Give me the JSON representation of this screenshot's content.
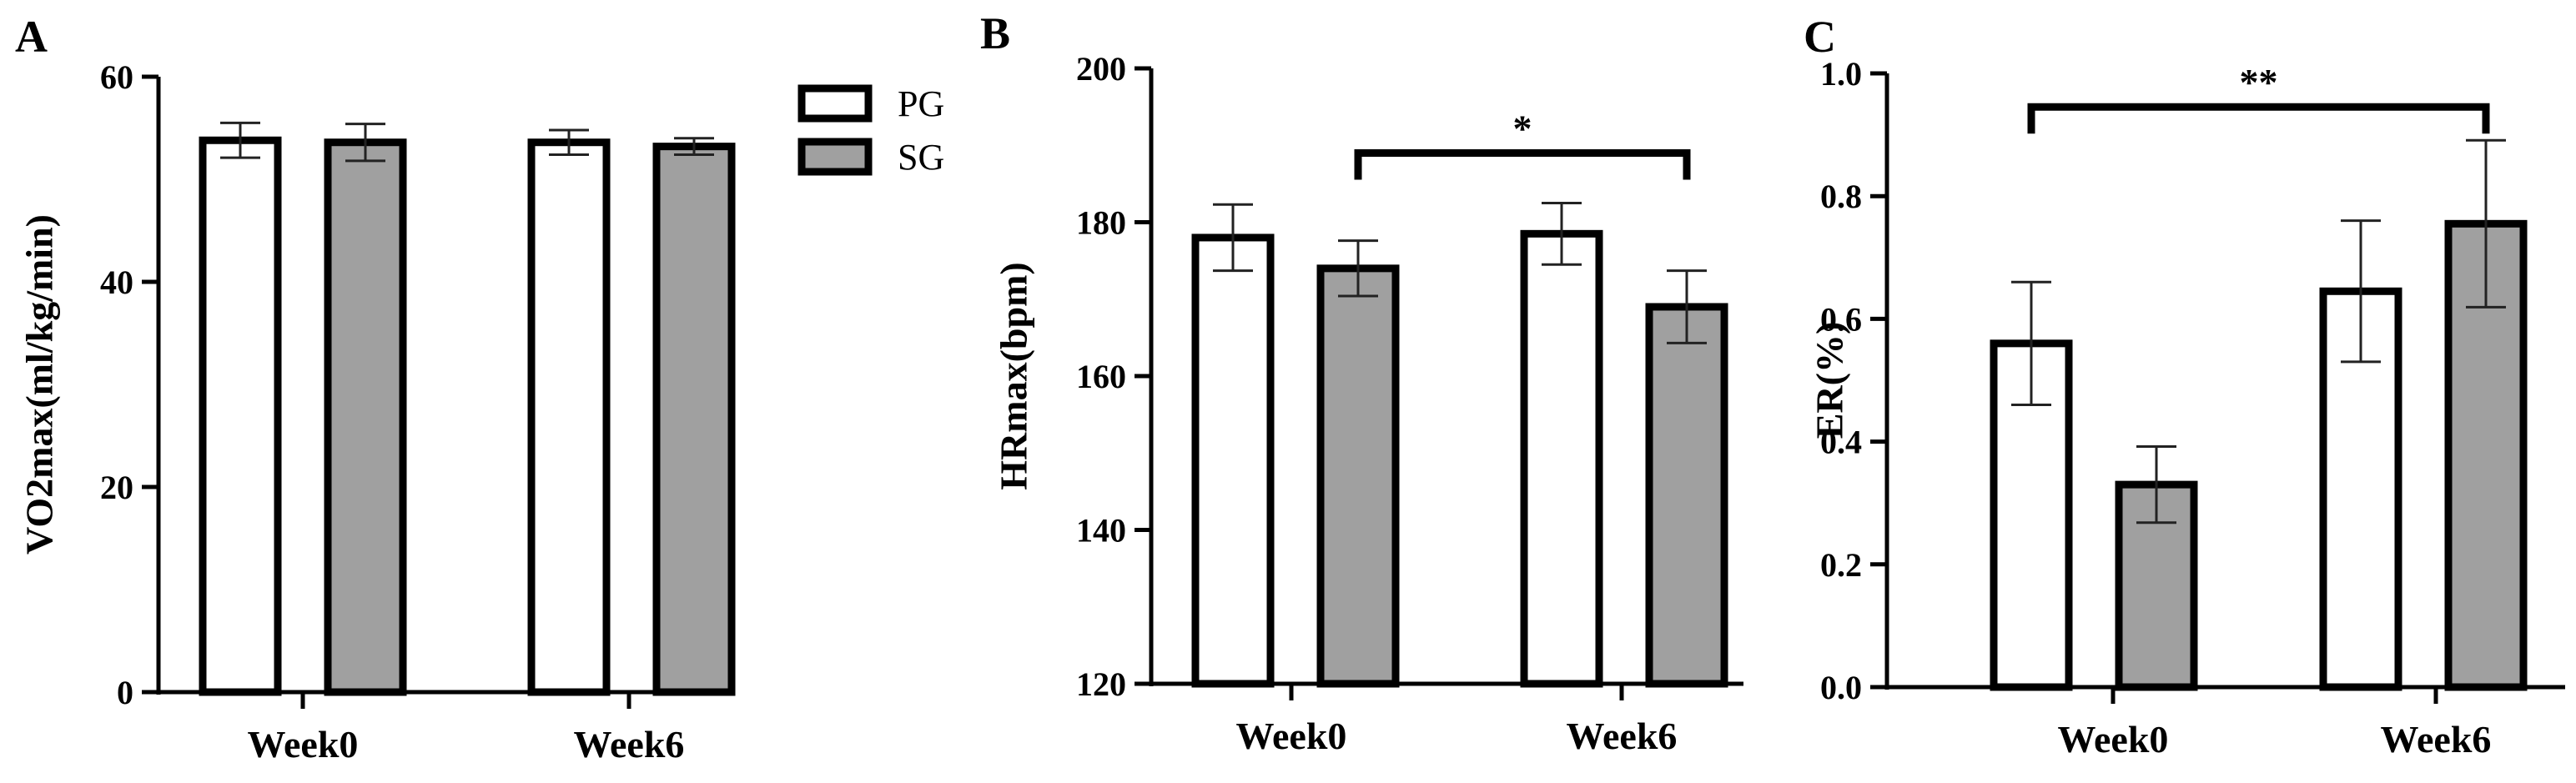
{
  "legend": [
    {
      "label": "PG",
      "color": "#ffffff"
    },
    {
      "label": "SG",
      "color": "#a0a0a0"
    }
  ],
  "chart_data": [
    {
      "type": "bar",
      "panel": "A",
      "ylabel": "VO2max(ml/kg/min)",
      "ylim": [
        0,
        60
      ],
      "yticks": [
        0,
        20,
        40,
        60
      ],
      "categories": [
        "Week0",
        "Week6"
      ],
      "series": [
        {
          "name": "PG",
          "values": [
            53.8,
            53.6
          ],
          "errors": [
            1.7,
            1.2
          ]
        },
        {
          "name": "SG",
          "values": [
            53.6,
            53.2
          ],
          "errors": [
            1.8,
            0.8
          ]
        }
      ],
      "significance": []
    },
    {
      "type": "bar",
      "panel": "B",
      "ylabel": "HRmax(bpm)",
      "ylim": [
        120,
        200
      ],
      "yticks": [
        120,
        140,
        160,
        180,
        200
      ],
      "categories": [
        "Week0",
        "Week6"
      ],
      "series": [
        {
          "name": "PG",
          "values": [
            178,
            178.5
          ],
          "errors": [
            4.3,
            4
          ]
        },
        {
          "name": "SG",
          "values": [
            174,
            169
          ],
          "errors": [
            3.6,
            4.7
          ]
        }
      ],
      "significance": [
        {
          "from": {
            "category": 0,
            "series": 1
          },
          "to": {
            "category": 1,
            "series": 1
          },
          "label": "*"
        }
      ]
    },
    {
      "type": "bar",
      "panel": "C",
      "ylabel": "ER(%)",
      "ylim": [
        0,
        1.0
      ],
      "yticks": [
        0.0,
        0.2,
        0.4,
        0.6,
        0.8,
        1.0
      ],
      "categories": [
        "Week0",
        "Week6"
      ],
      "series": [
        {
          "name": "PG",
          "values": [
            0.56,
            0.645
          ],
          "errors": [
            0.1,
            0.115
          ]
        },
        {
          "name": "SG",
          "values": [
            0.33,
            0.755
          ],
          "errors": [
            0.062,
            0.136
          ]
        }
      ],
      "significance": [
        {
          "from": {
            "category": 0,
            "series": 0
          },
          "to": {
            "category": 1,
            "series": 1
          },
          "label": "**"
        }
      ]
    }
  ]
}
